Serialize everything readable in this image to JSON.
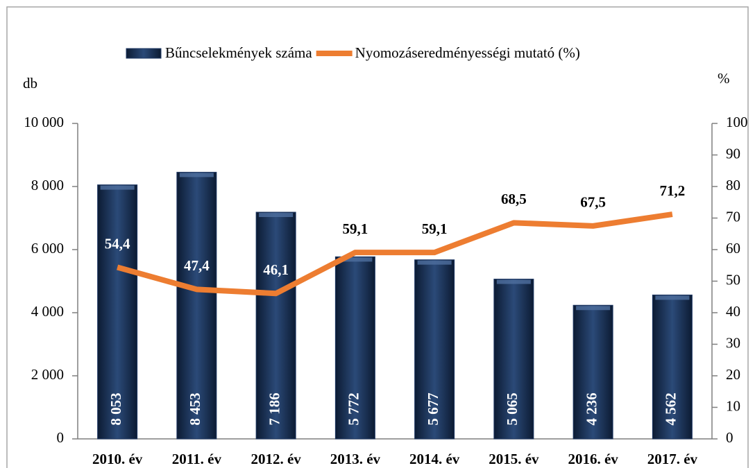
{
  "chart_data": {
    "type": "combo",
    "categories": [
      "2010. év",
      "2011. év",
      "2012. év",
      "2013. év",
      "2014. év",
      "2015. év",
      "2016. év",
      "2017. év"
    ],
    "series": [
      {
        "name": "Bűncselekmények száma",
        "type": "bar",
        "color": "#1f3864",
        "values": [
          8053,
          8453,
          7186,
          5772,
          5677,
          5065,
          4236,
          4562
        ],
        "value_labels": [
          "8 053",
          "8 453",
          "7 186",
          "5 772",
          "5 677",
          "5 065",
          "4 236",
          "4 562"
        ]
      },
      {
        "name": "Nyomozáseredményességi mutató (%)",
        "type": "line",
        "axis": "y2",
        "color": "#ed7d31",
        "values": [
          54.4,
          47.4,
          46.1,
          59.1,
          59.1,
          68.5,
          67.5,
          71.2
        ],
        "value_labels": [
          "54,4",
          "47,4",
          "46,1",
          "59,1",
          "59,1",
          "68,5",
          "67,5",
          "71,2"
        ]
      }
    ],
    "y_label": "db",
    "y2_label": "%",
    "ylim": [
      0,
      10000
    ],
    "yticks": [
      0,
      {
        "value": 2000,
        "label": "2 000"
      },
      {
        "value": 4000,
        "label": "4 000"
      },
      {
        "value": 6000,
        "label": "6 000"
      },
      {
        "value": 8000,
        "label": "8 000"
      },
      {
        "value": 10000,
        "label": "10 000"
      }
    ],
    "y2lim": [
      0,
      100
    ],
    "y2ticks": [
      0,
      10,
      20,
      30,
      40,
      50,
      60,
      70,
      80,
      90,
      100
    ],
    "legend": "top"
  }
}
